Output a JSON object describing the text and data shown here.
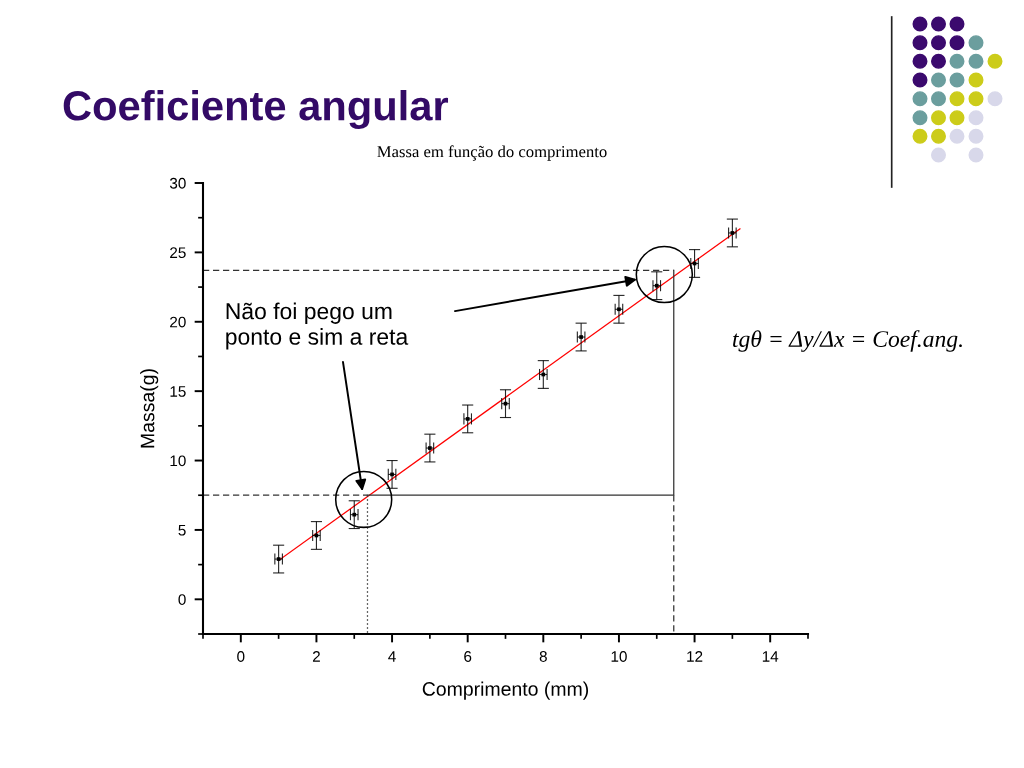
{
  "chart_data": {
    "type": "scatter",
    "title": "Coeficiente angular",
    "subtitle": "Massa em função do comprimento",
    "xlabel": "Comprimento (mm)",
    "ylabel": "Massa(g)",
    "annotations": [
      "Não foi pego um\nponto e sim a reta",
      "tgθ = Δy/Δx = Coef.ang."
    ],
    "xlim": [
      -1,
      15
    ],
    "ylim": [
      -2.5,
      30
    ],
    "xticks": [
      {
        "value": -1,
        "label": null
      },
      0,
      {
        "value": 1,
        "label": null
      },
      2,
      {
        "value": 3,
        "label": null
      },
      4,
      {
        "value": 5,
        "label": null
      },
      6,
      {
        "value": 7,
        "label": null
      },
      8,
      {
        "value": 9,
        "label": null
      },
      10,
      {
        "value": 11,
        "label": null
      },
      12,
      {
        "value": 13,
        "label": null
      },
      14,
      {
        "value": 15,
        "label": null
      }
    ],
    "yticks": [
      {
        "value": -2.5,
        "label": null
      },
      0,
      {
        "value": 2.5,
        "label": null
      },
      5,
      {
        "value": 7.5,
        "label": null
      },
      10,
      {
        "value": 12.5,
        "label": null
      },
      15,
      {
        "value": 17.5,
        "label": null
      },
      20,
      {
        "value": 22.5,
        "label": null
      },
      25,
      {
        "value": 27.5,
        "label": null
      },
      30
    ],
    "series": [
      {
        "color": "#000000",
        "marker": "square",
        "x": [
          1,
          2,
          3,
          4,
          5,
          6,
          7,
          8,
          9,
          10,
          11,
          12,
          13
        ],
        "values": [
          2.9,
          4.6,
          6.1,
          9.0,
          10.9,
          13.0,
          14.1,
          16.2,
          18.9,
          20.9,
          22.6,
          24.2,
          26.4
        ],
        "errors": [
          1,
          1,
          1,
          1,
          1,
          1,
          1,
          1,
          1,
          1,
          1,
          1,
          1
        ],
        "xerrors": [
          0.1,
          0.1,
          0.1,
          0.1,
          0.1,
          0.1,
          0.1,
          0.1,
          0.1,
          0.1,
          0.1,
          0.1,
          0.1
        ]
      },
      {
        "type": "line",
        "color": "#ff0000",
        "line_style": "solid",
        "x": [
          1,
          13.2
        ],
        "values": [
          2.8,
          26.7
        ]
      },
      {
        "type": "line",
        "color": "#333333",
        "line_style": "dashed",
        "x": [
          -1,
          11.45
        ],
        "values": [
          23.7,
          23.7
        ]
      },
      {
        "type": "line",
        "color": "#333333",
        "line_style": "dashed",
        "x": [
          -1,
          3.35
        ],
        "values": [
          7.5,
          7.5
        ]
      },
      {
        "type": "line",
        "color": "#333333",
        "line_style": "solid",
        "x": [
          3.35,
          11.45,
          11.45
        ],
        "values": [
          7.5,
          7.5,
          23.7
        ]
      },
      {
        "type": "line",
        "color": "#333333",
        "line_style": "dashed",
        "x": [
          11.45,
          11.45
        ],
        "values": [
          7.5,
          -2.5
        ]
      },
      {
        "type": "line",
        "color": "#333333",
        "line_style": "dotted",
        "x": [
          3.35,
          3.35
        ],
        "values": [
          7.5,
          -2.5
        ]
      },
      {
        "type": "bubble",
        "color": "#000000",
        "x": [
          3.25,
          11.2
        ],
        "values": [
          7.2,
          23.4
        ],
        "sizes": [
          1,
          1
        ]
      }
    ]
  }
}
